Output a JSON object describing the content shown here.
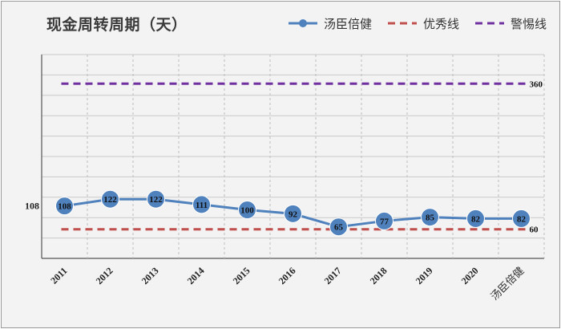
{
  "chart_data": {
    "type": "line",
    "title": "现金周转周期（天）",
    "categories": [
      "2011",
      "2012",
      "2013",
      "2014",
      "2015",
      "2016",
      "2017",
      "2018",
      "2019",
      "2020",
      "汤臣倍健"
    ],
    "series": [
      {
        "name": "汤臣倍健",
        "values": [
          108,
          122,
          122,
          111,
          100,
          92,
          65,
          77,
          85,
          82,
          82
        ],
        "style": "line-marker",
        "color": "#4f81bd"
      },
      {
        "name": "优秀线",
        "values": [
          60,
          60,
          60,
          60,
          60,
          60,
          60,
          60,
          60,
          60,
          60
        ],
        "style": "dashed",
        "color": "#c0504d",
        "end_label": "60"
      },
      {
        "name": "警惕线",
        "values": [
          360,
          360,
          360,
          360,
          360,
          360,
          360,
          360,
          360,
          360,
          360
        ],
        "style": "dashed",
        "color": "#7030a0",
        "end_label": "360"
      }
    ],
    "ylim": [
      0,
      420
    ],
    "y_reference_label": "108",
    "y_reference_value": 108,
    "grid": {
      "horizontal": true,
      "vertical_dashed": true
    },
    "legend_position": "top-right"
  }
}
